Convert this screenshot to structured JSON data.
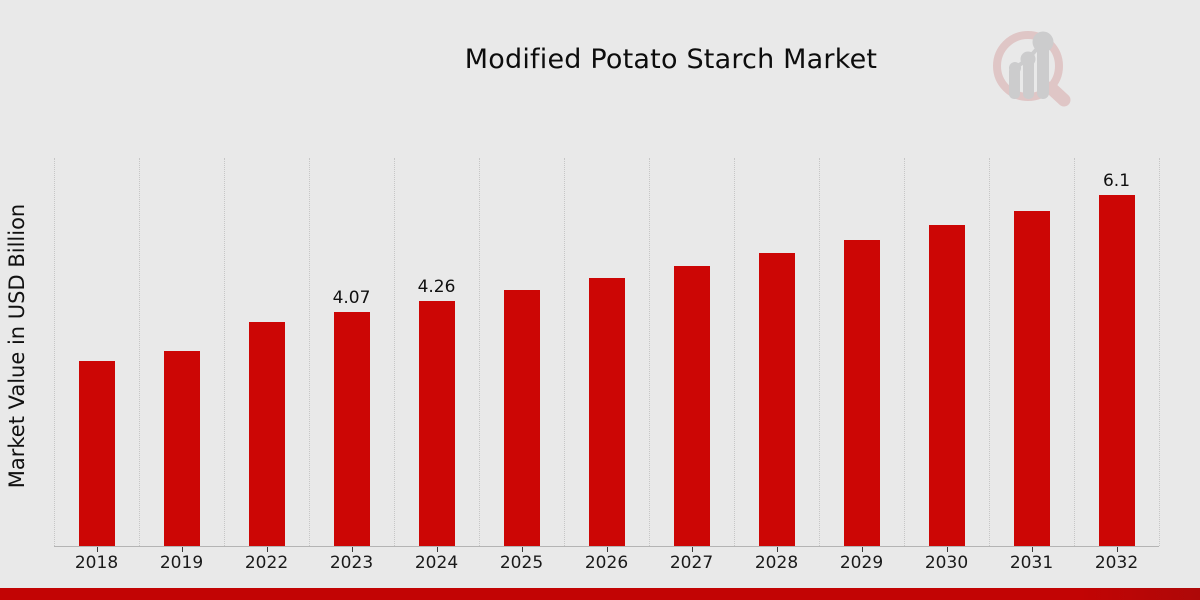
{
  "header": {
    "title": "Modified Potato Starch Market"
  },
  "y_axis": {
    "label": "Market Value in USD Billion"
  },
  "chart_data": {
    "type": "bar",
    "title": "Modified Potato Starch Market",
    "xlabel": "",
    "ylabel": "Market Value in USD Billion",
    "categories": [
      "2018",
      "2019",
      "2022",
      "2023",
      "2024",
      "2025",
      "2026",
      "2027",
      "2028",
      "2029",
      "2030",
      "2031",
      "2032"
    ],
    "values": [
      3.21,
      3.4,
      3.9,
      4.07,
      4.26,
      4.45,
      4.67,
      4.87,
      5.1,
      5.33,
      5.58,
      5.83,
      6.1
    ],
    "data_labels": [
      "",
      "",
      "",
      "4.07",
      "4.26",
      "",
      "",
      "",
      "",
      "",
      "",
      "",
      "6.1"
    ],
    "ylim": [
      0,
      6.75
    ],
    "y_ticks_visible": false,
    "grid": "vertical-dotted",
    "legend": "none",
    "bar_color": "#cc0605",
    "label_color": "#101010",
    "gridline_color": "#c6c6c6",
    "background_color": "#e9e9e9"
  },
  "footer": {
    "ribbon_color": "#c20404"
  },
  "logo": {
    "icon": "magnifier-trend-chart-watermark"
  }
}
